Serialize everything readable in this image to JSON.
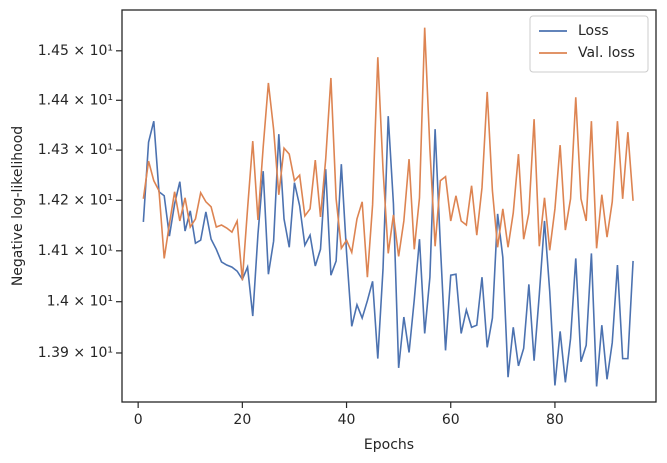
{
  "chart_data": {
    "type": "line",
    "xlabel": "Epochs",
    "ylabel": "Negative log-likelihood",
    "x": [
      1,
      2,
      3,
      4,
      5,
      6,
      7,
      8,
      9,
      10,
      11,
      12,
      13,
      14,
      15,
      16,
      17,
      18,
      19,
      20,
      21,
      22,
      23,
      24,
      25,
      26,
      27,
      28,
      29,
      30,
      31,
      32,
      33,
      34,
      35,
      36,
      37,
      38,
      39,
      40,
      41,
      42,
      43,
      44,
      45,
      46,
      47,
      48,
      49,
      50,
      51,
      52,
      53,
      54,
      55,
      56,
      57,
      58,
      59,
      60,
      61,
      62,
      63,
      64,
      65,
      66,
      67,
      68,
      69,
      70,
      71,
      72,
      73,
      74,
      75,
      76,
      77,
      78,
      79,
      80,
      81,
      82,
      83,
      84,
      85,
      86,
      87,
      88,
      89,
      90,
      91,
      92,
      93,
      94,
      95
    ],
    "series": [
      {
        "name": "Loss",
        "color": "#4c72b0",
        "values": [
          14.157,
          14.316,
          14.358,
          14.217,
          14.209,
          14.129,
          14.193,
          14.237,
          14.139,
          14.179,
          14.115,
          14.121,
          14.177,
          14.123,
          14.103,
          14.078,
          14.072,
          14.068,
          14.06,
          14.044,
          14.068,
          13.972,
          14.133,
          14.258,
          14.054,
          14.119,
          14.332,
          14.163,
          14.107,
          14.235,
          14.189,
          14.111,
          14.131,
          14.07,
          14.103,
          14.262,
          14.052,
          14.08,
          14.272,
          14.097,
          13.952,
          13.994,
          13.968,
          14.002,
          14.04,
          13.889,
          14.064,
          14.368,
          14.193,
          13.871,
          13.97,
          13.901,
          14.004,
          14.123,
          13.938,
          14.048,
          14.342,
          14.113,
          13.905,
          14.052,
          14.054,
          13.938,
          13.984,
          13.95,
          13.954,
          14.048,
          13.911,
          13.968,
          14.173,
          14.087,
          13.853,
          13.95,
          13.875,
          13.909,
          14.034,
          13.885,
          14.014,
          14.159,
          14.02,
          13.837,
          13.942,
          13.843,
          13.928,
          14.085,
          13.883,
          13.915,
          14.095,
          13.835,
          13.954,
          13.849,
          13.92,
          14.072,
          13.889,
          13.889,
          14.08
        ]
      },
      {
        "name": "Val. loss",
        "color": "#dd8452",
        "values": [
          14.203,
          14.278,
          14.239,
          14.219,
          14.085,
          14.153,
          14.217,
          14.159,
          14.205,
          14.147,
          14.163,
          14.215,
          14.197,
          14.187,
          14.147,
          14.151,
          14.145,
          14.137,
          14.159,
          14.042,
          14.183,
          14.318,
          14.161,
          14.306,
          14.435,
          14.342,
          14.211,
          14.304,
          14.292,
          14.239,
          14.25,
          14.169,
          14.183,
          14.28,
          14.167,
          14.282,
          14.445,
          14.203,
          14.105,
          14.121,
          14.097,
          14.163,
          14.197,
          14.048,
          14.191,
          14.487,
          14.262,
          14.095,
          14.171,
          14.089,
          14.159,
          14.282,
          14.103,
          14.205,
          14.547,
          14.302,
          14.109,
          14.239,
          14.247,
          14.159,
          14.209,
          14.159,
          14.151,
          14.229,
          14.131,
          14.225,
          14.417,
          14.219,
          14.107,
          14.183,
          14.107,
          14.175,
          14.292,
          14.123,
          14.175,
          14.362,
          14.109,
          14.205,
          14.101,
          14.183,
          14.31,
          14.141,
          14.203,
          14.406,
          14.203,
          14.159,
          14.358,
          14.105,
          14.211,
          14.127,
          14.197,
          14.358,
          14.203,
          14.336,
          14.199
        ]
      }
    ],
    "xlim": [
      -3.1,
      99.4
    ],
    "xticks": [
      0,
      20,
      40,
      60,
      80
    ],
    "ylim": [
      13.805,
      14.583
    ],
    "ylog": true,
    "yticks": [
      {
        "value": 13.9,
        "label": "1.39 × 10¹"
      },
      {
        "value": 14.0,
        "label": "1.4 × 10¹"
      },
      {
        "value": 14.1,
        "label": "1.41 × 10¹"
      },
      {
        "value": 14.2,
        "label": "1.42 × 10¹"
      },
      {
        "value": 14.3,
        "label": "1.43 × 10¹"
      },
      {
        "value": 14.4,
        "label": "1.44 × 10¹"
      },
      {
        "value": 14.5,
        "label": "1.45 × 10¹"
      }
    ],
    "legend": "upper right"
  }
}
